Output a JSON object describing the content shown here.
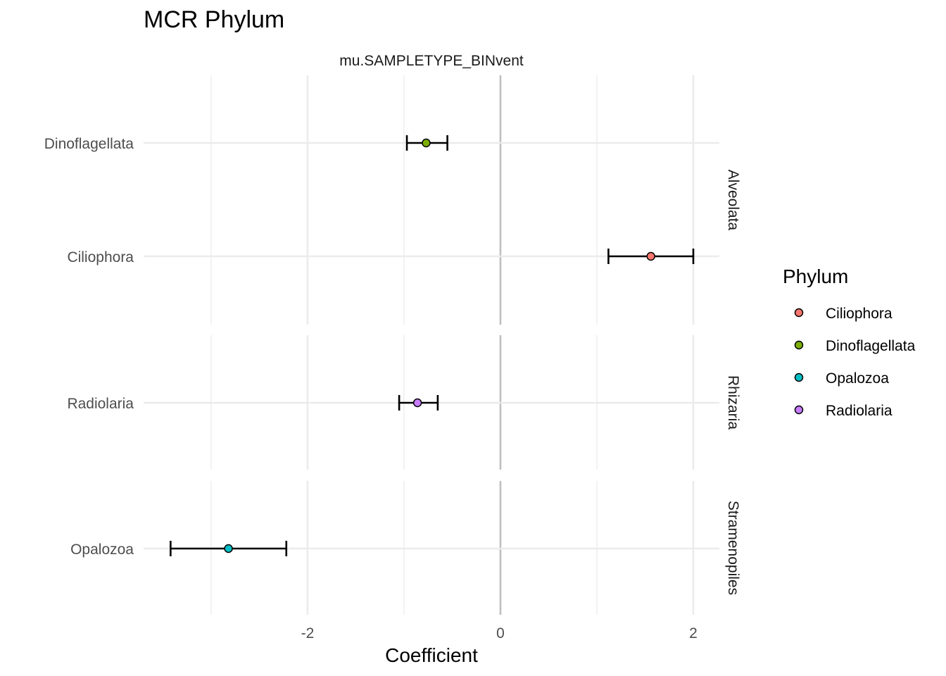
{
  "chart_data": {
    "type": "scatter",
    "subtype": "coefficient plot with horizontal error bars, faceted by row",
    "title": "MCR Phylum",
    "column_strip": "mu.SAMPLETYPE_BINvent",
    "xlabel": "Coefficient",
    "ylabel": "",
    "xlim": [
      -3.7,
      2.27
    ],
    "x_ticks": [
      -2,
      0,
      2
    ],
    "x_tick_labels": [
      "-2",
      "0",
      "2"
    ],
    "reference_line_x": 0,
    "grid": true,
    "legend": {
      "title": "Phylum",
      "position": "right",
      "entries": [
        {
          "label": "Ciliophora",
          "color": "#F8766D"
        },
        {
          "label": "Dinoflagellata",
          "color": "#7CAE00"
        },
        {
          "label": "Opalozoa",
          "color": "#00BFC4"
        },
        {
          "label": "Radiolaria",
          "color": "#C77CFF"
        }
      ]
    },
    "facets": [
      {
        "label": "Alveolata",
        "rows": [
          {
            "label": "Dinoflagellata",
            "x": -0.77,
            "xmin": -0.97,
            "xmax": -0.55,
            "color": "#7CAE00"
          },
          {
            "label": "Ciliophora",
            "x": 1.56,
            "xmin": 1.12,
            "xmax": 2.0,
            "color": "#F8766D"
          }
        ]
      },
      {
        "label": "Rhizaria",
        "rows": [
          {
            "label": "Radiolaria",
            "x": -0.86,
            "xmin": -1.05,
            "xmax": -0.65,
            "color": "#C77CFF"
          }
        ]
      },
      {
        "label": "Stramenopiles",
        "rows": [
          {
            "label": "Opalozoa",
            "x": -2.82,
            "xmin": -3.42,
            "xmax": -2.22,
            "color": "#00BFC4"
          }
        ]
      }
    ]
  }
}
